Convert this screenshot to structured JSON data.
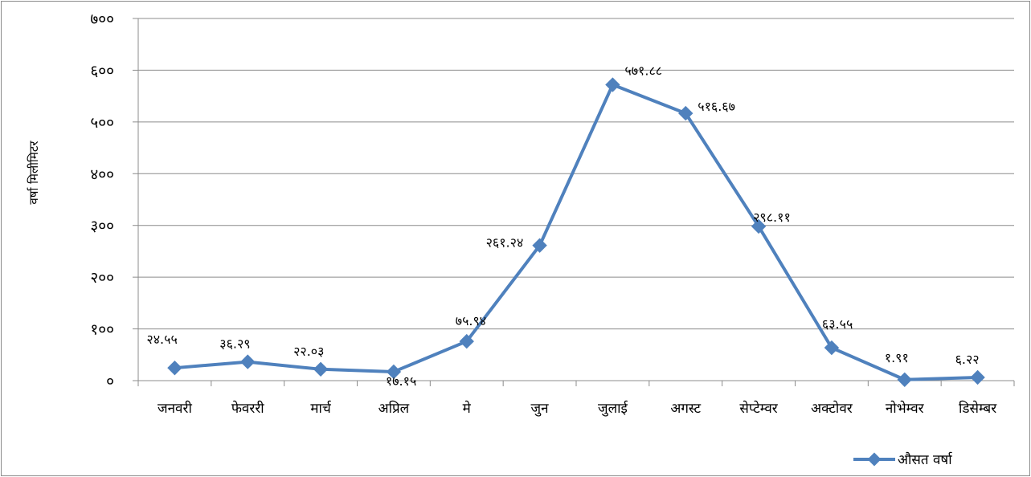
{
  "chart_data": {
    "type": "line",
    "title": "",
    "xlabel": "",
    "ylabel": "वर्षा मिलीमिटर",
    "ylim": [
      0,
      700
    ],
    "yticks": [
      0,
      100,
      200,
      300,
      400,
      500,
      600,
      700
    ],
    "ytick_labels": [
      "०",
      "१००",
      "२००",
      "३००",
      "४००",
      "५००",
      "६००",
      "७००"
    ],
    "grid": true,
    "legend_position": "bottom-right",
    "categories": [
      "जनवरी",
      "फेवररी",
      "मार्च",
      "अप्रिल",
      "मे",
      "जुन",
      "जुलाई",
      "अगस्ट",
      "सेप्टेम्वर",
      "अक्टोवर",
      "नोभेम्वर",
      "डिसेम्बर"
    ],
    "series": [
      {
        "name": "औसत वर्षा",
        "color": "#4f81bd",
        "values": [
          24.55,
          36.29,
          22.03,
          17.15,
          75.94,
          261.24,
          571.88,
          516.67,
          298.11,
          63.55,
          1.91,
          6.22
        ],
        "data_labels": [
          "२४.५५",
          "३६.२९",
          "२२.०३",
          "१७.१५",
          "७५.९४",
          "२६१.२४",
          "५७१.८८",
          "५१६.६७",
          "२९८.११",
          "६३.५५",
          "१.९१",
          "६.२२"
        ]
      }
    ]
  }
}
